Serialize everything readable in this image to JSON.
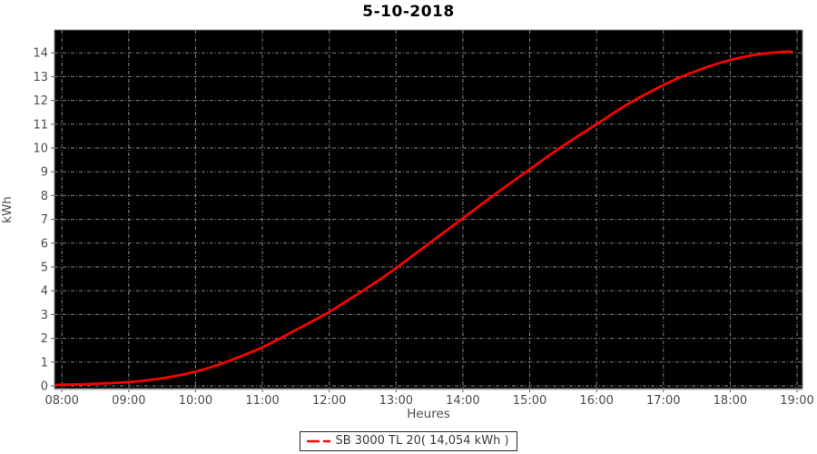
{
  "title": "5-10-2018",
  "legend": {
    "label": "SB 3000 TL 20( 14,054 kWh )",
    "marker_color": "#ff0000"
  },
  "colors": {
    "plot_background": "#000000",
    "grid": "#9a9a9a",
    "series": "#ff0000",
    "axis_line": "#808080",
    "baseline": "#c0c0c0",
    "tick_label": "#4d4d4d",
    "page_background": "#ffffff",
    "title_color": "#000000"
  },
  "chart_data": {
    "type": "line",
    "title": "5-10-2018",
    "xlabel": "Heures",
    "ylabel": "kWh",
    "grid": true,
    "legend_position": "bottom",
    "plot_background": "#000000",
    "x_tick_labels": [
      "08:00",
      "09:00",
      "10:00",
      "11:00",
      "12:00",
      "13:00",
      "14:00",
      "15:00",
      "16:00",
      "17:00",
      "18:00",
      "19:00"
    ],
    "y_ticks": [
      0,
      1,
      2,
      3,
      4,
      5,
      6,
      7,
      8,
      9,
      10,
      11,
      12,
      13,
      14
    ],
    "ylim": [
      0,
      14.95
    ],
    "total_kwh_label": "14,054 kWh",
    "series": [
      {
        "name": "SB 3000 TL 20( 14,054 kWh )",
        "color": "#ff0000",
        "x_times": [
          "07:55",
          "08:00",
          "08:10",
          "08:20",
          "08:30",
          "08:40",
          "08:50",
          "09:00",
          "09:10",
          "09:20",
          "09:30",
          "09:40",
          "09:50",
          "10:00",
          "10:10",
          "10:20",
          "10:30",
          "10:40",
          "10:50",
          "11:00",
          "11:10",
          "11:20",
          "11:30",
          "11:40",
          "11:50",
          "12:00",
          "12:10",
          "12:20",
          "12:30",
          "12:40",
          "12:50",
          "13:00",
          "13:10",
          "13:20",
          "13:30",
          "13:40",
          "13:50",
          "14:00",
          "14:10",
          "14:20",
          "14:30",
          "14:40",
          "14:50",
          "15:00",
          "15:10",
          "15:20",
          "15:30",
          "15:40",
          "15:50",
          "16:00",
          "16:10",
          "16:20",
          "16:30",
          "16:40",
          "16:50",
          "17:00",
          "17:10",
          "17:20",
          "17:30",
          "17:40",
          "17:50",
          "18:00",
          "18:10",
          "18:20",
          "18:30",
          "18:40",
          "18:50",
          "18:55"
        ],
        "values": [
          0.04,
          0.05,
          0.06,
          0.07,
          0.09,
          0.11,
          0.13,
          0.16,
          0.2,
          0.26,
          0.32,
          0.4,
          0.49,
          0.6,
          0.73,
          0.88,
          1.05,
          1.23,
          1.42,
          1.62,
          1.85,
          2.1,
          2.35,
          2.6,
          2.85,
          3.1,
          3.4,
          3.7,
          4.0,
          4.3,
          4.62,
          4.95,
          5.3,
          5.65,
          6.0,
          6.35,
          6.7,
          7.05,
          7.4,
          7.75,
          8.1,
          8.43,
          8.77,
          9.1,
          9.44,
          9.77,
          10.1,
          10.4,
          10.7,
          11.0,
          11.31,
          11.61,
          11.9,
          12.16,
          12.41,
          12.65,
          12.87,
          13.07,
          13.25,
          13.42,
          13.57,
          13.7,
          13.81,
          13.9,
          13.97,
          14.02,
          14.05,
          14.054
        ]
      }
    ]
  }
}
